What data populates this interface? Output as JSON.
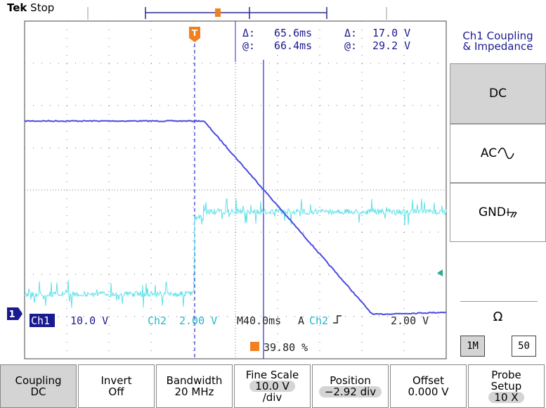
{
  "header": {
    "brand": "Tek",
    "status": "Stop"
  },
  "trigger_marker": "T",
  "cursor_readout": {
    "rows": [
      [
        "Δ:",
        "65.6ms",
        "Δ:",
        "17.0 V"
      ],
      [
        "@:",
        "66.4ms",
        "@:",
        "29.2 V"
      ]
    ]
  },
  "side_menu": {
    "title": [
      "Ch1 Coupling",
      "& Impedance"
    ],
    "options": [
      "DC",
      "AC",
      "GND"
    ],
    "impedance": {
      "symbol": "Ω",
      "options": [
        "1M",
        "50"
      ]
    }
  },
  "status_bar": {
    "channel_marker": "1",
    "ch1": "Ch1",
    "ch1_scale": "10.0 V",
    "ch2": "Ch2",
    "ch2_scale": "2.00 V",
    "timebase": "M40.0ms",
    "trigger_mode": "A",
    "trigger_source": "Ch2",
    "trigger_level": "2.00 V",
    "trigger_position": "39.80 %"
  },
  "bottom_menu": [
    {
      "label": [
        "Coupling"
      ],
      "value": [
        "DC"
      ]
    },
    {
      "label": [
        "Invert"
      ],
      "value": [
        "Off"
      ]
    },
    {
      "label": [
        "Bandwidth"
      ],
      "value": [
        "20 MHz"
      ]
    },
    {
      "label": [
        "Fine Scale"
      ],
      "value": [
        "10.0 V",
        "/div"
      ]
    },
    {
      "label": [
        "Position"
      ],
      "value": [
        "−2.92 div"
      ]
    },
    {
      "label": [
        "Offset"
      ],
      "value": [
        "0.000 V"
      ]
    },
    {
      "label": [
        "Probe",
        "Setup"
      ],
      "value": [
        "10 X"
      ]
    }
  ]
}
